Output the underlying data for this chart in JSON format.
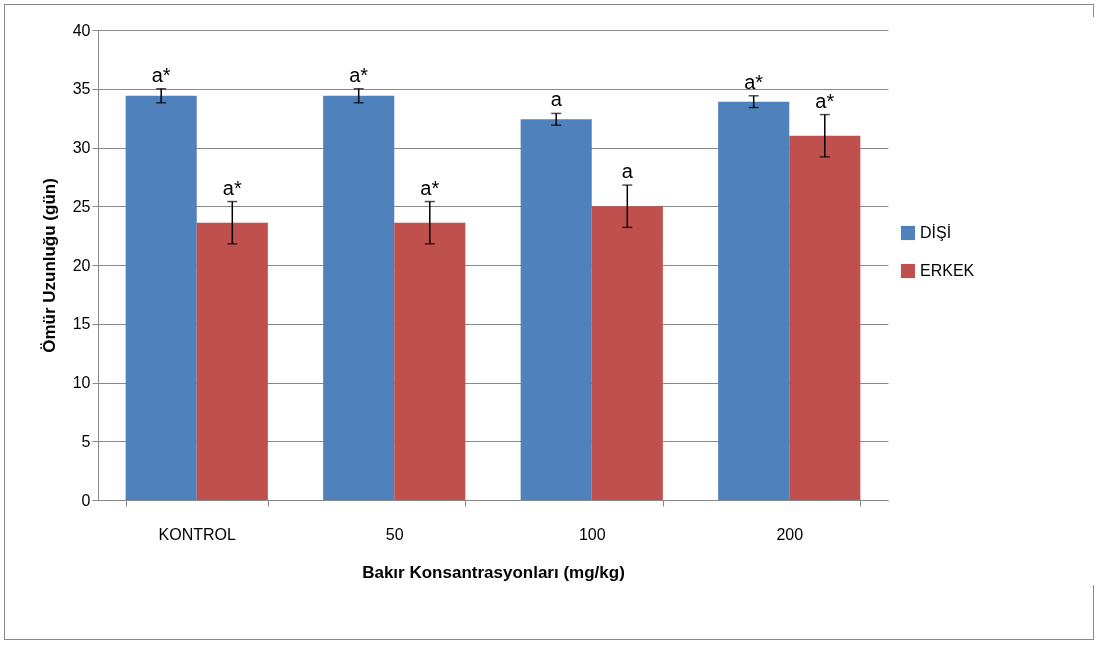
{
  "chart_data": {
    "type": "bar",
    "xlabel": "Bakır Konsantrasyonları (mg/kg)",
    "ylabel": "Ömür Uzunluğu (gün)",
    "categories": [
      "KONTROL",
      "50",
      "100",
      "200"
    ],
    "series": [
      {
        "name": "DİŞİ",
        "color": "#4f81bd",
        "values": [
          34.4,
          34.4,
          32.4,
          33.9
        ],
        "errors": [
          0.6,
          0.6,
          0.5,
          0.5
        ],
        "value_labels": [
          "a*",
          "a*",
          "a",
          "a*"
        ]
      },
      {
        "name": "ERKEK",
        "color": "#c0504d",
        "values": [
          23.6,
          23.6,
          25.0,
          31.0
        ],
        "errors": [
          1.8,
          1.8,
          1.8,
          1.8
        ],
        "value_labels": [
          "a*",
          "a*",
          "a",
          "a*"
        ]
      }
    ],
    "ylim": [
      0,
      40
    ],
    "yticks": [
      0,
      5,
      10,
      15,
      20,
      25,
      30,
      35,
      40
    ],
    "grid": "y",
    "legend": "right"
  }
}
